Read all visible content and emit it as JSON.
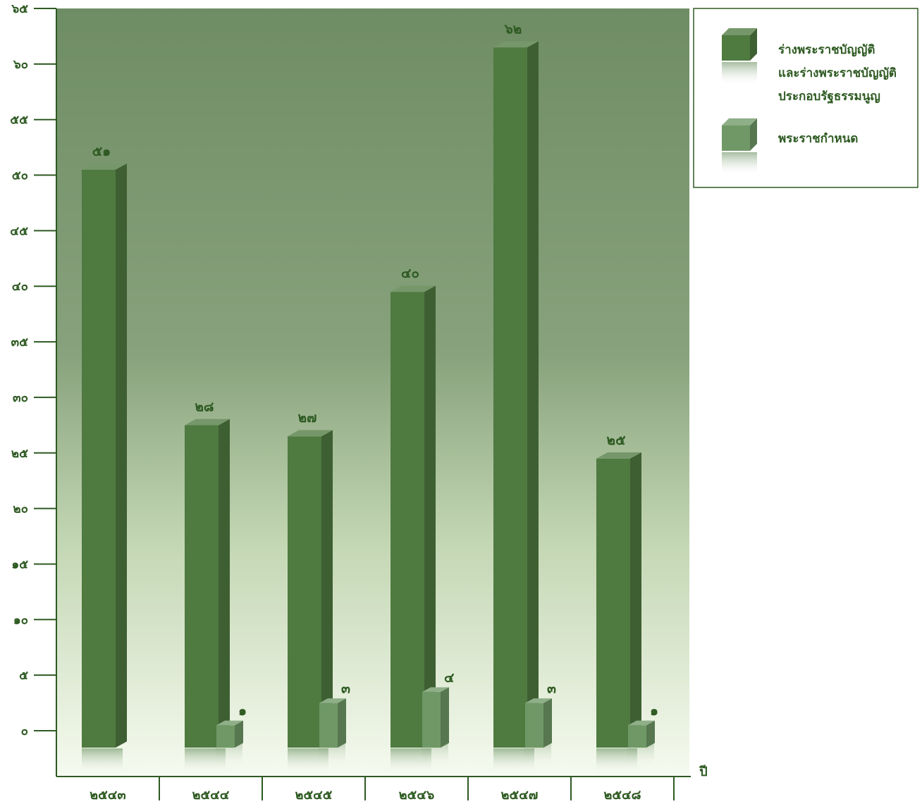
{
  "chart_data": {
    "type": "bar",
    "xlabel": "ปี",
    "ylim": [
      0,
      65
    ],
    "yticks": [
      {
        "value": 0,
        "label": "๐"
      },
      {
        "value": 5,
        "label": "๕"
      },
      {
        "value": 10,
        "label": "๑๐"
      },
      {
        "value": 15,
        "label": "๑๕"
      },
      {
        "value": 20,
        "label": "๒๐"
      },
      {
        "value": 25,
        "label": "๒๕"
      },
      {
        "value": 30,
        "label": "๓๐"
      },
      {
        "value": 35,
        "label": "๓๕"
      },
      {
        "value": 40,
        "label": "๔๐"
      },
      {
        "value": 45,
        "label": "๔๕"
      },
      {
        "value": 50,
        "label": "๕๐"
      },
      {
        "value": 55,
        "label": "๕๕"
      },
      {
        "value": 60,
        "label": "๖๐"
      },
      {
        "value": 65,
        "label": "๖๕"
      }
    ],
    "categories": [
      "๒๕๔๓",
      "๒๕๔๔",
      "๒๕๔๕",
      "๒๕๔๖",
      "๒๕๔๗",
      "๒๕๔๘"
    ],
    "series": [
      {
        "name": "ร่างพระราชบัญญัติ และร่างพระราชบัญญัติ ประกอบรัฐธรรมนูญ",
        "name_lines": [
          "ร่างพระราชบัญญัติ",
          "และร่างพระราชบัญญัติ",
          "ประกอบรัฐธรรมนูญ"
        ],
        "values": [
          51,
          28,
          27,
          40,
          62,
          25
        ],
        "labels": [
          "๕๑",
          "๒๘",
          "๒๗",
          "๔๐",
          "๖๒",
          "๒๕"
        ],
        "color": "#4f7a40"
      },
      {
        "name": "พระราชกำหนด",
        "name_lines": [
          "พระราชกำหนด"
        ],
        "values": [
          0,
          1,
          3,
          4,
          3,
          1
        ],
        "labels": [
          "",
          "๑",
          "๓",
          "๔",
          "๓",
          "๑"
        ],
        "color": "#6f9866"
      }
    ],
    "grid": false,
    "legend_position": "top-right",
    "colors": {
      "axis": "#2e5a22",
      "text": "#2e5a22",
      "plot_top": "#6f8d65",
      "plot_bottom": "#f2f7ea"
    }
  }
}
